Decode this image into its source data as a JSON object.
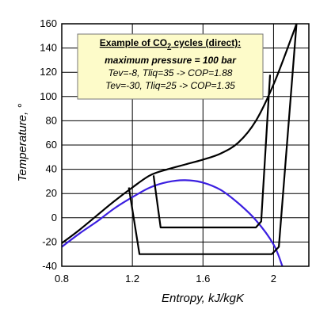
{
  "chart_data": {
    "type": "line",
    "xlabel": "Entropy,  kJ/kgK",
    "ylabel": "Temperature,  °",
    "xlim": [
      0.8,
      2.2
    ],
    "ylim": [
      -40,
      160
    ],
    "x_ticks": [
      "0.8",
      "1.2",
      "1.6",
      "2"
    ],
    "y_ticks": [
      "-40",
      "-20",
      "0",
      "20",
      "40",
      "60",
      "80",
      "100",
      "120",
      "140",
      "160"
    ],
    "grid": "x and y at 0.4 and 20 steps",
    "annotation": {
      "title_prefix": "Example of CO",
      "title_sub": "2",
      "title_suffix": " cycles (direct):",
      "line1": "maximum pressure = 100 bar",
      "line2": "Tev=-8,  Tliq=35 -> COP=1.88",
      "line3": "Tev=-30,  Tliq=25 -> COP=1.35"
    },
    "series": [
      {
        "id": "saturation-dome",
        "color": "#3b1fe0",
        "points": [
          [
            0.8,
            -24
          ],
          [
            0.9,
            -13
          ],
          [
            1.0,
            -3
          ],
          [
            1.1,
            8
          ],
          [
            1.2,
            17
          ],
          [
            1.3,
            25
          ],
          [
            1.4,
            29.5
          ],
          [
            1.5,
            31
          ],
          [
            1.6,
            29
          ],
          [
            1.7,
            23
          ],
          [
            1.8,
            12
          ],
          [
            1.9,
            -2
          ],
          [
            2.0,
            -22
          ],
          [
            2.05,
            -40
          ]
        ]
      },
      {
        "id": "isobar-100bar",
        "color": "#000000",
        "points": [
          [
            0.8,
            -21
          ],
          [
            0.9,
            -10
          ],
          [
            1.0,
            2
          ],
          [
            1.1,
            14
          ],
          [
            1.2,
            25
          ],
          [
            1.3,
            35
          ],
          [
            1.4,
            40
          ],
          [
            1.5,
            44
          ],
          [
            1.6,
            48
          ],
          [
            1.7,
            53
          ],
          [
            1.8,
            62
          ],
          [
            1.9,
            80
          ],
          [
            2.0,
            110
          ],
          [
            2.1,
            148
          ],
          [
            2.13,
            160
          ]
        ]
      },
      {
        "id": "cycle-tev-8",
        "color": "#000000",
        "points": [
          [
            1.32,
            35
          ],
          [
            1.36,
            -8
          ],
          [
            1.9,
            -8
          ],
          [
            1.93,
            -3
          ],
          [
            1.98,
            118
          ]
        ]
      },
      {
        "id": "cycle-tev-30",
        "color": "#000000",
        "points": [
          [
            1.18,
            25
          ],
          [
            1.24,
            -30
          ],
          [
            1.99,
            -30
          ],
          [
            2.03,
            -24
          ],
          [
            2.13,
            160
          ]
        ]
      }
    ]
  }
}
